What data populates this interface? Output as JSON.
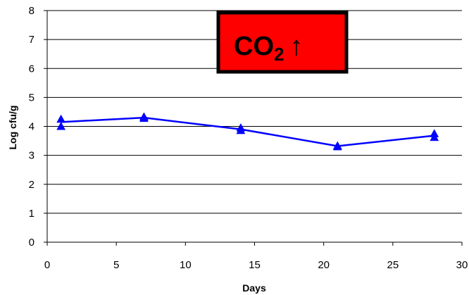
{
  "chart_data": {
    "type": "line",
    "xlabel": "Days",
    "ylabel": "Log cfu/g",
    "xlim": [
      0,
      30
    ],
    "ylim": [
      0,
      8
    ],
    "x_ticks": [
      "0",
      "5",
      "10",
      "15",
      "20",
      "25",
      "30"
    ],
    "y_ticks": [
      "0",
      "1",
      "2",
      "3",
      "4",
      "5",
      "6",
      "7",
      "8"
    ],
    "grid": "horizontal",
    "series": [
      {
        "color": "#0000FF",
        "marker": "triangle",
        "points": [
          {
            "x": 1,
            "y": 4.15
          },
          {
            "x": 7,
            "y": 4.3
          },
          {
            "x": 14,
            "y": 3.9
          },
          {
            "x": 21,
            "y": 3.32
          },
          {
            "x": 28,
            "y": 3.68
          }
        ],
        "replicate_points": [
          {
            "x": 1,
            "y": 4.25
          },
          {
            "x": 1,
            "y": 4.0
          },
          {
            "x": 7,
            "y": 4.33
          },
          {
            "x": 7,
            "y": 4.28
          },
          {
            "x": 14,
            "y": 3.95
          },
          {
            "x": 14,
            "y": 3.86
          },
          {
            "x": 21,
            "y": 3.33
          },
          {
            "x": 21,
            "y": 3.3
          },
          {
            "x": 28,
            "y": 3.75
          },
          {
            "x": 28,
            "y": 3.62
          }
        ]
      }
    ],
    "annotation": {
      "main": "CO",
      "subscript": "2",
      "arrow": "↑",
      "background": "#FF0000",
      "border": "#000000"
    }
  }
}
